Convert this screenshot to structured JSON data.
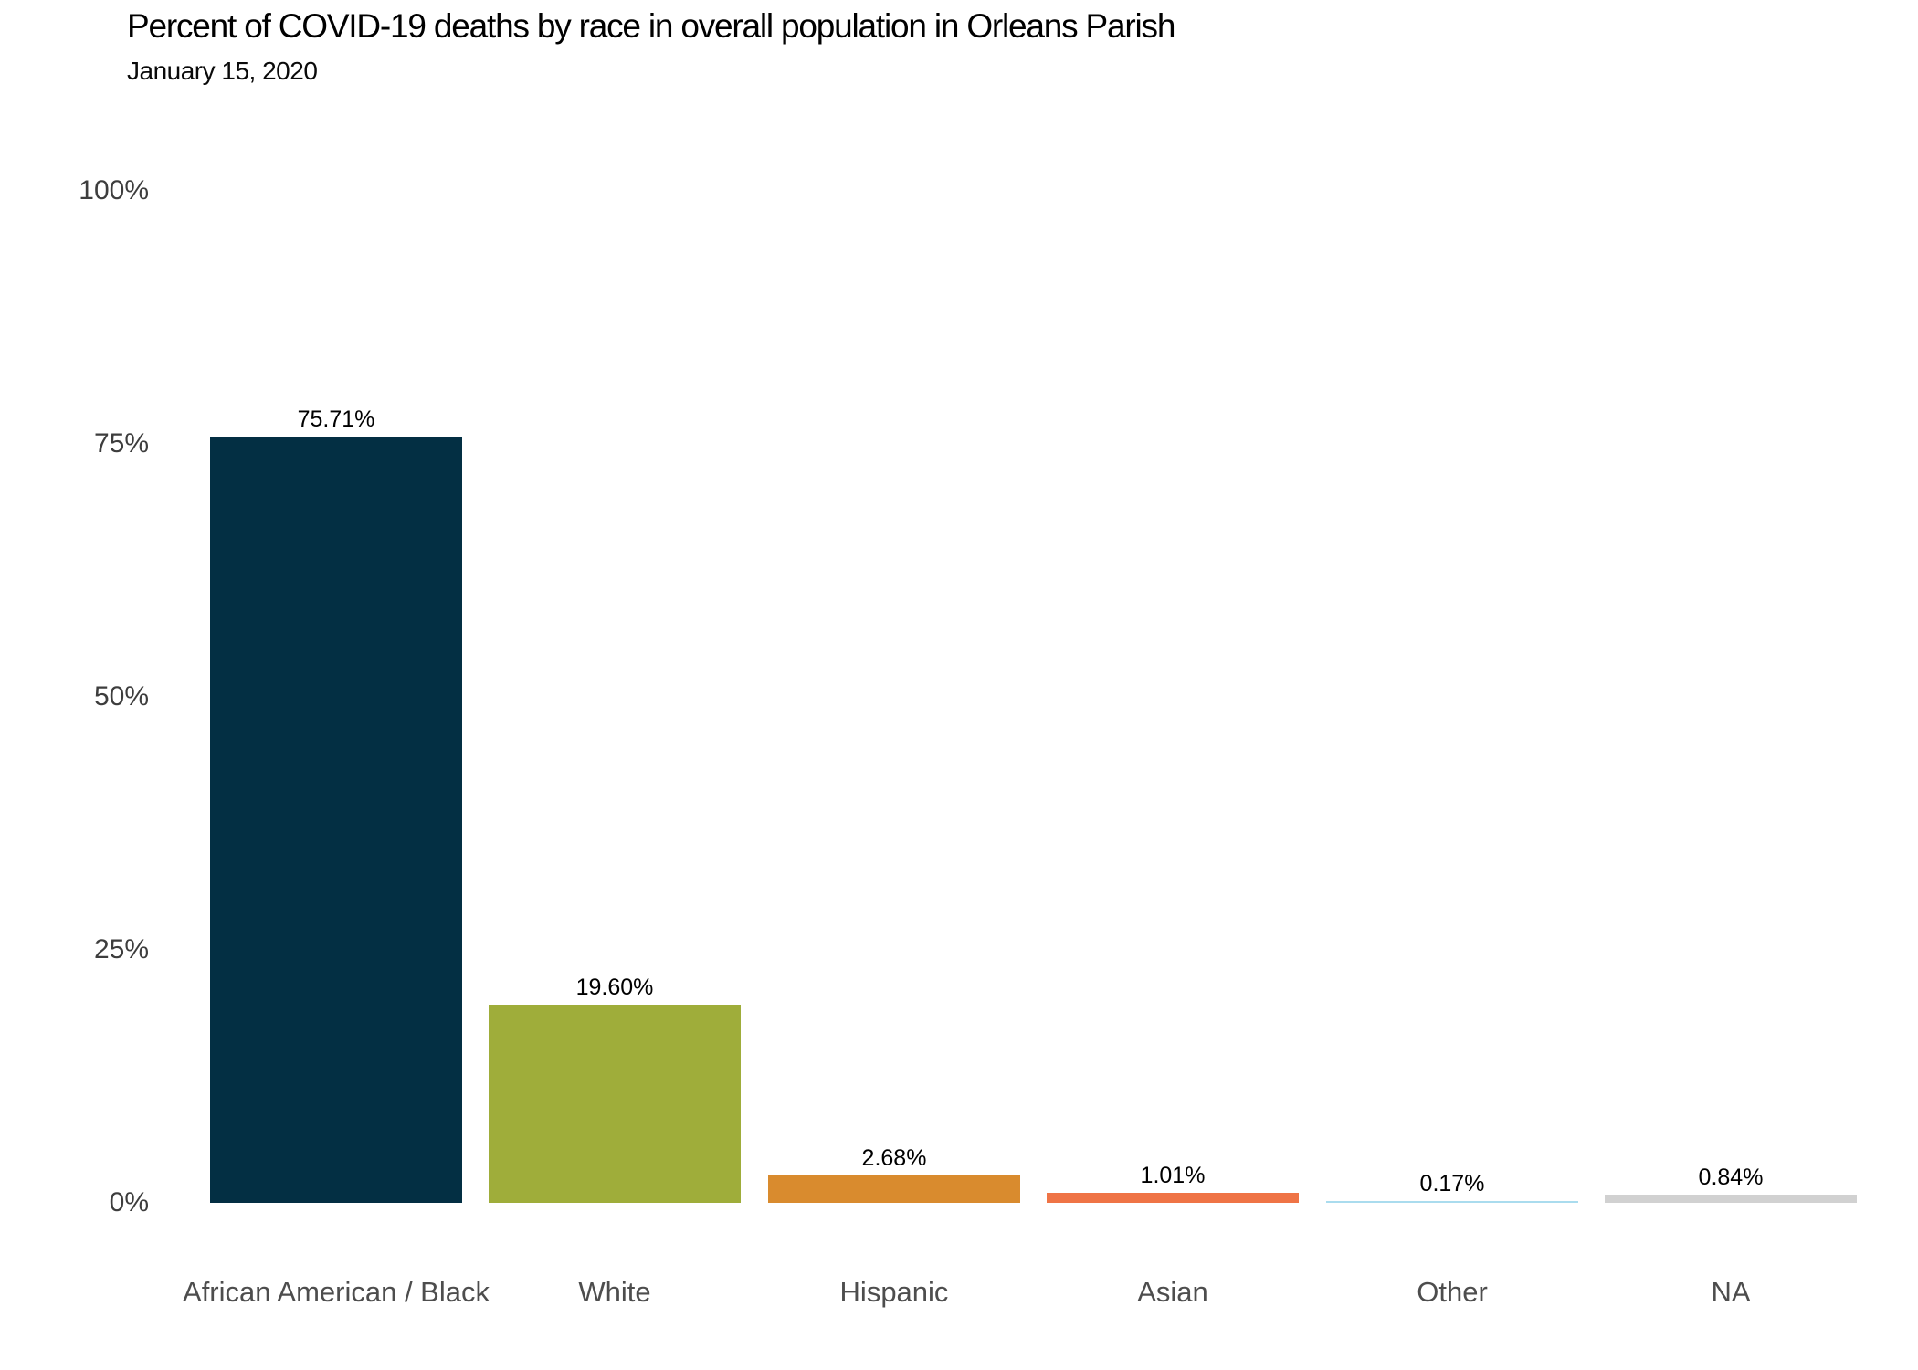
{
  "chart_data": {
    "type": "bar",
    "title": "Percent of COVID-19 deaths by race in overall population in Orleans Parish",
    "subtitle": "January 15, 2020",
    "categories": [
      "African American / Black",
      "White",
      "Hispanic",
      "Asian",
      "Other",
      "NA"
    ],
    "values": [
      75.71,
      19.6,
      2.68,
      1.01,
      0.17,
      0.84
    ],
    "value_labels": [
      "75.71%",
      "19.60%",
      "2.68%",
      "1.01%",
      "0.17%",
      "0.84%"
    ],
    "bar_colors": [
      "#032f43",
      "#9fad3a",
      "#d98b2e",
      "#ef7446",
      "#aadcee",
      "#d1d1d1"
    ],
    "xlabel": "",
    "ylabel": "",
    "ylim": [
      0,
      100
    ],
    "yticks": [
      "0%",
      "25%",
      "50%",
      "75%",
      "100%"
    ],
    "grid": false,
    "legend": false
  }
}
